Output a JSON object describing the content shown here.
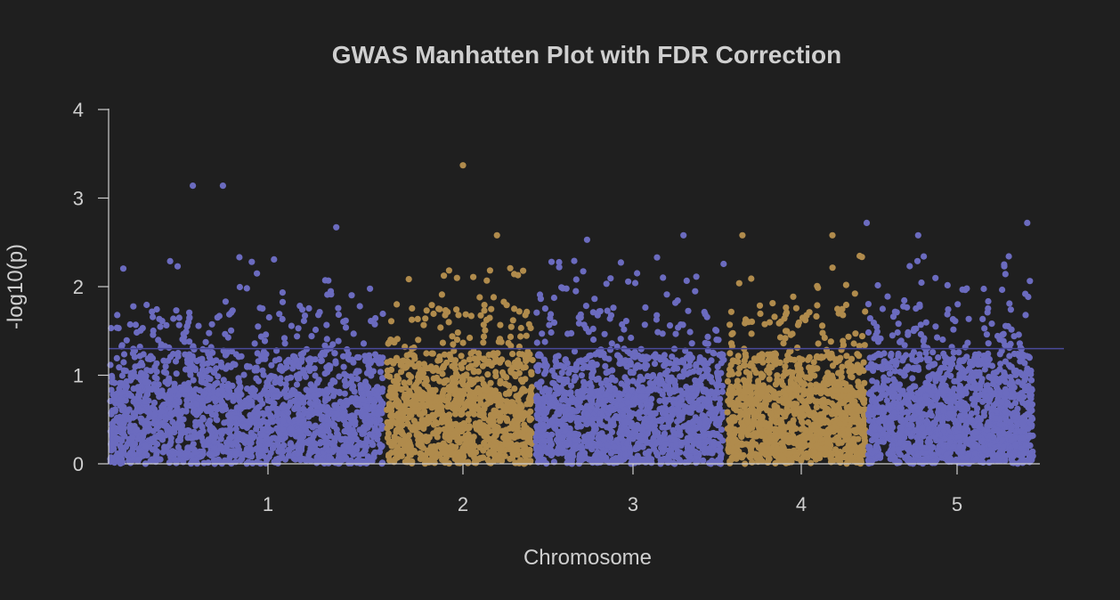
{
  "chart_data": {
    "type": "scatter",
    "title": "GWAS Manhatten Plot with FDR Correction",
    "xlabel": "Chromosome",
    "ylabel": "-log10(p)",
    "ylim": [
      0,
      4
    ],
    "y_ticks": [
      0,
      1,
      2,
      3,
      4
    ],
    "grid": false,
    "legend": "none",
    "colors": {
      "odd_chromosome": "#6b6bbf",
      "even_chromosome": "#b08b4c",
      "threshold": "#4a4a9a",
      "background": "#1f1f1f",
      "axis": "#cfcfcf"
    },
    "threshold": {
      "value": 1.3
    },
    "chromosomes": [
      {
        "label": "1",
        "tick": 1,
        "range": [
          0.15,
          1.6
        ],
        "color": "#6b6bbf"
      },
      {
        "label": "2",
        "tick": 2,
        "range": [
          1.6,
          2.42
        ],
        "color": "#b08b4c"
      },
      {
        "label": "3",
        "tick": 3,
        "range": [
          2.42,
          3.55
        ],
        "color": "#6b6bbf"
      },
      {
        "label": "4",
        "tick": 4,
        "range": [
          3.55,
          4.42
        ],
        "color": "#b08b4c"
      },
      {
        "label": "5",
        "tick": 5,
        "range": [
          4.42,
          5.5
        ],
        "color": "#6b6bbf"
      }
    ],
    "top_hits": [
      {
        "x": 0.6,
        "y": 3.14
      },
      {
        "x": 0.76,
        "y": 3.14
      },
      {
        "x": 1.35,
        "y": 2.67
      },
      {
        "x": 2.0,
        "y": 3.37
      },
      {
        "x": 2.2,
        "y": 2.58
      },
      {
        "x": 2.73,
        "y": 2.53
      },
      {
        "x": 3.3,
        "y": 2.58
      },
      {
        "x": 3.65,
        "y": 2.58
      },
      {
        "x": 4.2,
        "y": 2.58
      },
      {
        "x": 4.42,
        "y": 2.72
      },
      {
        "x": 4.75,
        "y": 2.58
      },
      {
        "x": 5.45,
        "y": 2.72
      }
    ]
  }
}
